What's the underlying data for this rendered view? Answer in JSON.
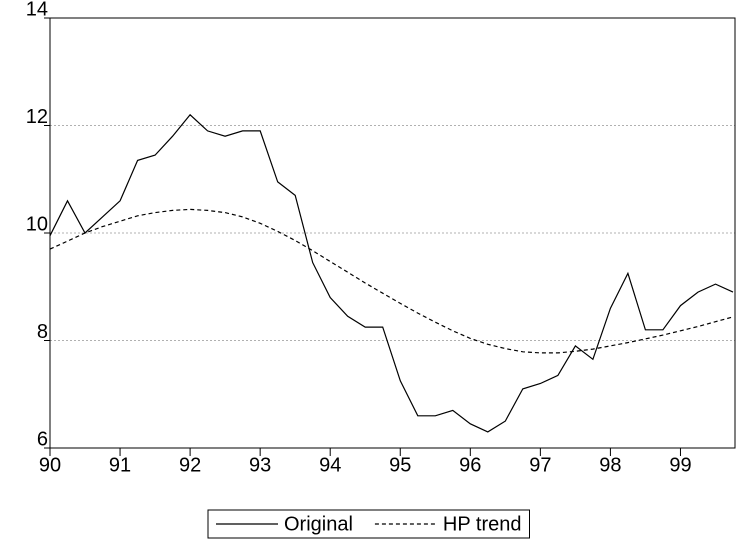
{
  "chart_data": {
    "type": "line",
    "x": [
      90,
      90.25,
      90.5,
      90.75,
      91,
      91.25,
      91.5,
      91.75,
      92,
      92.25,
      92.5,
      92.75,
      93,
      93.25,
      93.5,
      93.75,
      94,
      94.25,
      94.5,
      94.75,
      95,
      95.25,
      95.5,
      95.75,
      96,
      96.25,
      96.5,
      96.75,
      97,
      97.25,
      97.5,
      97.75,
      98,
      98.25,
      98.5,
      98.75,
      99,
      99.25,
      99.5,
      99.75
    ],
    "series": [
      {
        "name": "Original",
        "color": "#000000",
        "dash": false,
        "values": [
          9.95,
          10.6,
          10.0,
          10.3,
          10.6,
          11.35,
          11.45,
          11.8,
          12.2,
          11.9,
          11.8,
          11.9,
          11.9,
          10.95,
          10.7,
          9.45,
          8.8,
          8.45,
          8.25,
          8.25,
          7.25,
          6.6,
          6.6,
          6.7,
          6.45,
          6.3,
          6.5,
          7.1,
          7.2,
          7.35,
          7.9,
          7.65,
          8.6,
          9.25,
          8.2,
          8.2,
          8.65,
          8.9,
          9.05,
          8.9
        ]
      },
      {
        "name": "HP trend",
        "color": "#000000",
        "dash": true,
        "values": [
          9.7,
          9.85,
          10.0,
          10.12,
          10.22,
          10.32,
          10.38,
          10.42,
          10.44,
          10.42,
          10.38,
          10.3,
          10.18,
          10.03,
          9.86,
          9.67,
          9.47,
          9.27,
          9.07,
          8.88,
          8.69,
          8.51,
          8.34,
          8.18,
          8.04,
          7.93,
          7.85,
          7.79,
          7.77,
          7.77,
          7.8,
          7.84,
          7.9,
          7.96,
          8.03,
          8.1,
          8.18,
          8.26,
          8.35,
          8.44
        ]
      }
    ],
    "xlim": [
      90,
      99.75
    ],
    "xticks": [
      90,
      91,
      92,
      93,
      94,
      95,
      96,
      97,
      98,
      99
    ],
    "ylim": [
      6,
      14
    ],
    "yticks": [
      6,
      8,
      10,
      12,
      14
    ],
    "grid": true,
    "legend": "bottom"
  }
}
